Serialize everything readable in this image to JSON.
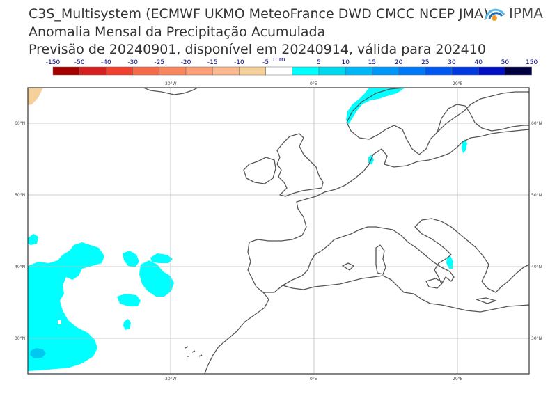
{
  "header": {
    "line1": "C3S_Multisystem  (ECMWF UKMO MeteoFrance DWD CMCC NCEP JMA)",
    "line2": "Anomalia Mensal da Precipitação Acumulada",
    "line3": "Previsão de 20240901, disponível em 20240914, válida para 202410"
  },
  "logo": {
    "text": "IPMA",
    "icon": "ipma-sun-wave-icon",
    "colors": [
      "#5bb7e8",
      "#1f6fb2",
      "#f0a030"
    ]
  },
  "colorbar": {
    "unit": "mm",
    "labels": [
      "-150",
      "-50",
      "-40",
      "-30",
      "-25",
      "-20",
      "-15",
      "-10",
      "-5",
      "5",
      "10",
      "15",
      "20",
      "25",
      "30",
      "40",
      "50",
      "150"
    ],
    "colors": [
      "#a50000",
      "#d42020",
      "#f04030",
      "#f46a4a",
      "#f8875f",
      "#fba07a",
      "#fbb98f",
      "#f5d09a",
      "#ffffff",
      "#00ffff",
      "#00d8f0",
      "#00b8f8",
      "#0098f8",
      "#0078f8",
      "#0058f0",
      "#0038e0",
      "#0010c0",
      "#000040"
    ]
  },
  "map": {
    "lon_labels": [
      "20°W",
      "0°E",
      "20°E"
    ],
    "lat_labels": [
      "60°N",
      "50°N",
      "40°N",
      "30°N"
    ],
    "extent": {
      "lon": [
        -40,
        30
      ],
      "lat": [
        25,
        65
      ]
    },
    "grid": true,
    "ocean_color": "#ffffff",
    "coast_color": "#555555",
    "anomaly_fill": "#00ffff",
    "strong_fill": "#00c8f0",
    "dry_fill": "#f5d09a"
  }
}
